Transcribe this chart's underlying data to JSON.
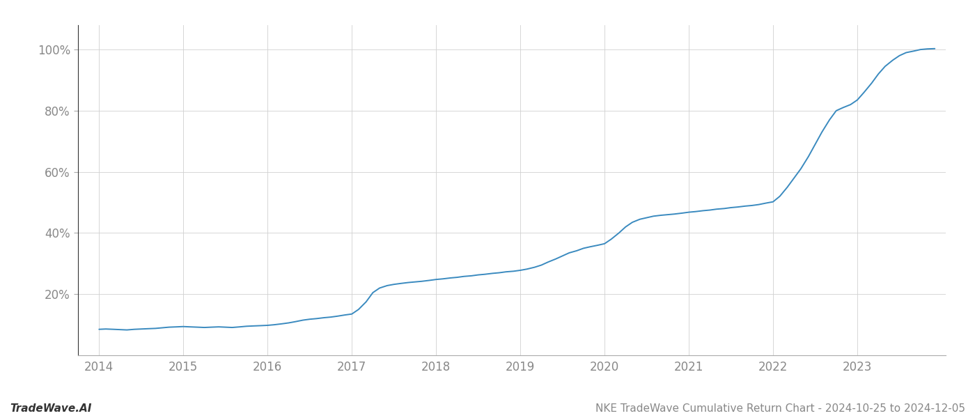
{
  "title": "NKE TradeWave Cumulative Return Chart - 2024-10-25 to 2024-12-05",
  "watermark": "TradeWave.AI",
  "line_color": "#3a8abf",
  "background_color": "#ffffff",
  "grid_color": "#d0d0d0",
  "x_values": [
    2014.0,
    2014.08,
    2014.17,
    2014.25,
    2014.33,
    2014.42,
    2014.5,
    2014.58,
    2014.67,
    2014.75,
    2014.83,
    2014.92,
    2015.0,
    2015.08,
    2015.17,
    2015.25,
    2015.33,
    2015.42,
    2015.5,
    2015.58,
    2015.67,
    2015.75,
    2015.83,
    2015.92,
    2016.0,
    2016.08,
    2016.17,
    2016.25,
    2016.33,
    2016.42,
    2016.5,
    2016.58,
    2016.67,
    2016.75,
    2016.83,
    2016.92,
    2017.0,
    2017.08,
    2017.17,
    2017.25,
    2017.33,
    2017.42,
    2017.5,
    2017.58,
    2017.67,
    2017.75,
    2017.83,
    2017.92,
    2018.0,
    2018.08,
    2018.17,
    2018.25,
    2018.33,
    2018.42,
    2018.5,
    2018.58,
    2018.67,
    2018.75,
    2018.83,
    2018.92,
    2019.0,
    2019.08,
    2019.17,
    2019.25,
    2019.33,
    2019.42,
    2019.5,
    2019.58,
    2019.67,
    2019.75,
    2019.83,
    2019.92,
    2020.0,
    2020.08,
    2020.17,
    2020.25,
    2020.33,
    2020.42,
    2020.5,
    2020.58,
    2020.67,
    2020.75,
    2020.83,
    2020.92,
    2021.0,
    2021.08,
    2021.17,
    2021.25,
    2021.33,
    2021.42,
    2021.5,
    2021.58,
    2021.67,
    2021.75,
    2021.83,
    2021.92,
    2022.0,
    2022.08,
    2022.17,
    2022.25,
    2022.33,
    2022.42,
    2022.5,
    2022.58,
    2022.67,
    2022.75,
    2022.83,
    2022.92,
    2023.0,
    2023.08,
    2023.17,
    2023.25,
    2023.33,
    2023.42,
    2023.5,
    2023.58,
    2023.67,
    2023.75,
    2023.83,
    2023.92
  ],
  "y_values": [
    8.5,
    8.6,
    8.5,
    8.4,
    8.3,
    8.5,
    8.6,
    8.7,
    8.8,
    9.0,
    9.2,
    9.3,
    9.4,
    9.3,
    9.2,
    9.1,
    9.2,
    9.3,
    9.2,
    9.1,
    9.3,
    9.5,
    9.6,
    9.7,
    9.8,
    10.0,
    10.3,
    10.6,
    11.0,
    11.5,
    11.8,
    12.0,
    12.3,
    12.5,
    12.8,
    13.2,
    13.5,
    15.0,
    17.5,
    20.5,
    22.0,
    22.8,
    23.2,
    23.5,
    23.8,
    24.0,
    24.2,
    24.5,
    24.8,
    25.0,
    25.3,
    25.5,
    25.8,
    26.0,
    26.3,
    26.5,
    26.8,
    27.0,
    27.3,
    27.5,
    27.8,
    28.2,
    28.8,
    29.5,
    30.5,
    31.5,
    32.5,
    33.5,
    34.2,
    35.0,
    35.5,
    36.0,
    36.5,
    38.0,
    40.0,
    42.0,
    43.5,
    44.5,
    45.0,
    45.5,
    45.8,
    46.0,
    46.2,
    46.5,
    46.8,
    47.0,
    47.3,
    47.5,
    47.8,
    48.0,
    48.3,
    48.5,
    48.8,
    49.0,
    49.3,
    49.8,
    50.2,
    52.0,
    55.0,
    58.0,
    61.0,
    65.0,
    69.0,
    73.0,
    77.0,
    80.0,
    81.0,
    82.0,
    83.5,
    86.0,
    89.0,
    92.0,
    94.5,
    96.5,
    98.0,
    99.0,
    99.5,
    100.0,
    100.2,
    100.3
  ],
  "xlim": [
    2013.75,
    2024.05
  ],
  "ylim": [
    0,
    108
  ],
  "xticks": [
    2014,
    2015,
    2016,
    2017,
    2018,
    2019,
    2020,
    2021,
    2022,
    2023
  ],
  "yticks": [
    20,
    40,
    60,
    80,
    100
  ],
  "ytick_labels": [
    "20%",
    "40%",
    "60%",
    "80%",
    "100%"
  ],
  "line_width": 1.4,
  "title_fontsize": 11,
  "watermark_fontsize": 11,
  "tick_fontsize": 12,
  "tick_color": "#888888",
  "spine_color": "#aaaaaa",
  "left_spine_color": "#333333"
}
